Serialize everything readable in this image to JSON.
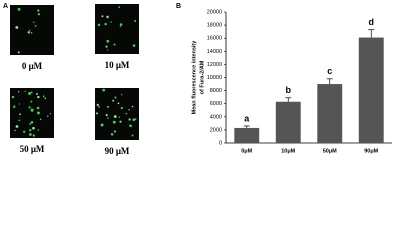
{
  "panel_a": {
    "label": "A",
    "captions": [
      "0 μM",
      "10 μM",
      "50 μM",
      "90 μM"
    ]
  },
  "chart_data": {
    "type": "bar",
    "panel_label": "B",
    "y_label": [
      "Mean fluorescence intensity",
      "of Fura-2/AM"
    ],
    "categories": [
      "0μM",
      "10μM",
      "50μM",
      "90μM"
    ],
    "values": [
      2300,
      6300,
      9000,
      16100
    ],
    "errors": [
      300,
      600,
      800,
      1200
    ],
    "annotations": [
      "a",
      "b",
      "c",
      "d"
    ],
    "color": "#555555",
    "ylim": [
      0,
      20000
    ],
    "yticks": [
      0,
      2000,
      4000,
      6000,
      8000,
      10000,
      12000,
      14000,
      16000,
      18000,
      20000
    ]
  }
}
